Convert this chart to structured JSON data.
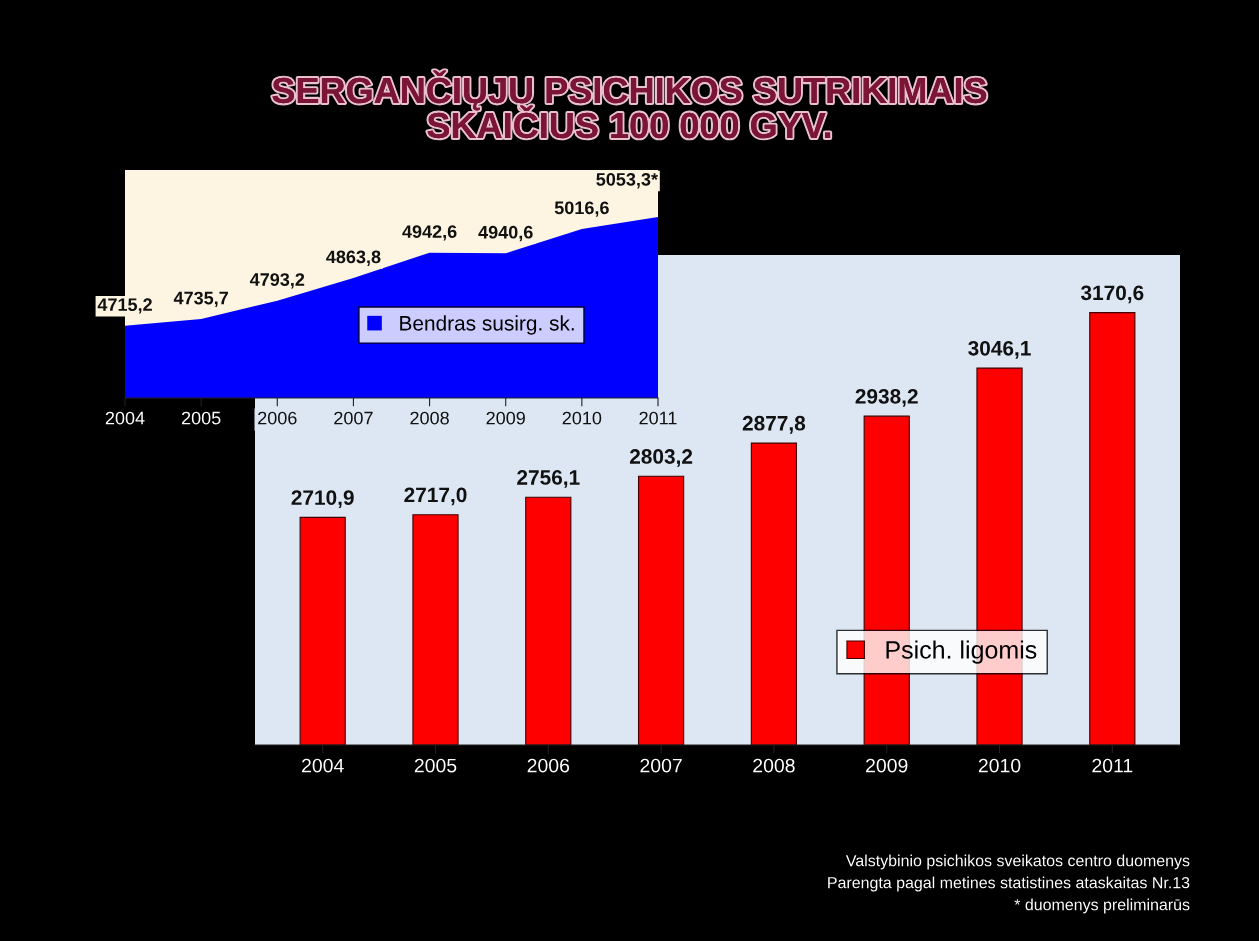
{
  "chart_data": [
    {
      "type": "bar",
      "title": "SERGANČIŲJŲ PSICHIKOS SUTRIKIMAIS\nSKAIČIUS 100 000 GYV.",
      "categories": [
        "2004",
        "2005",
        "2006",
        "2007",
        "2008",
        "2009",
        "2010",
        "2011"
      ],
      "series": [
        {
          "name": "Psich. ligomis",
          "color": "#ff0000",
          "values": [
            2710.9,
            2717.0,
            2756.1,
            2803.2,
            2877.8,
            2938.2,
            3046.1,
            3170.6
          ],
          "value_labels": [
            "2710,9",
            "2717,0",
            "2756,1",
            "2803,2",
            "2877,8",
            "2938,2",
            "3046,1",
            "3170,6"
          ]
        }
      ],
      "ylim": [
        2200,
        3300
      ],
      "tick_labels": "x",
      "legend": "bottom right",
      "grid": false,
      "annotations": [
        "Valstybinio psichikos sveikatos centro duomenys",
        "Parengta pagal metines statistines ataskaitas Nr.13",
        "* duomenys preliminarūs"
      ]
    },
    {
      "type": "area",
      "categories": [
        "2004",
        "2005",
        "2006",
        "2007",
        "2008",
        "2009",
        "2010",
        "2011"
      ],
      "series": [
        {
          "name": "Bendras susirg. sk.",
          "color": "#0000ff",
          "values": [
            4715.2,
            4735.7,
            4793.2,
            4863.8,
            4942.6,
            4940.6,
            5016.6,
            5053.3
          ],
          "value_labels": [
            "4715,2",
            "4735,7",
            "4793,2",
            "4863,8",
            "4942,6",
            "4940,6",
            "5016,6",
            "5053,3*"
          ]
        }
      ],
      "ylim": [
        4490,
        5200
      ],
      "tick_labels": "x",
      "legend": "center",
      "grid": false
    }
  ]
}
